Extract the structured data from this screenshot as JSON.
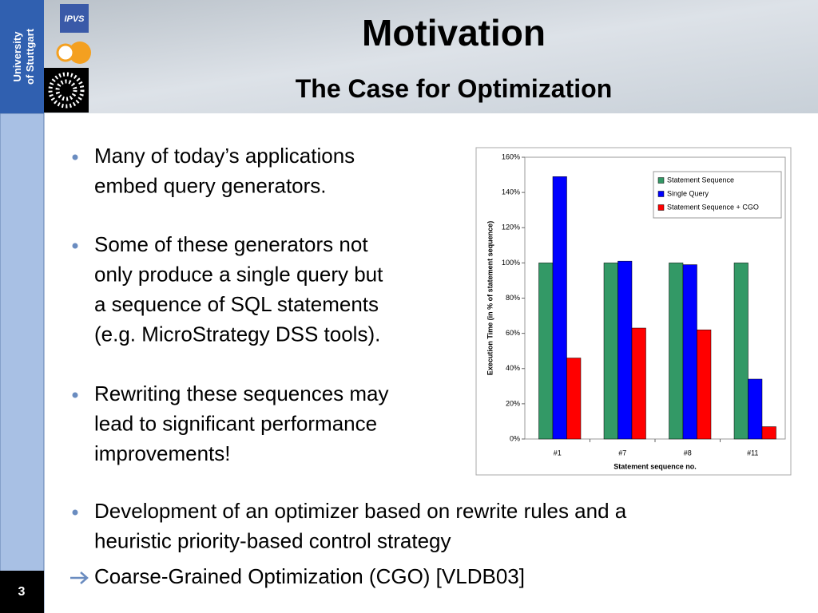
{
  "header": {
    "title": "Motivation",
    "subtitle": "The Case for Optimization"
  },
  "sidebar": {
    "university": [
      "University",
      "of Stuttgart"
    ],
    "logo": "IPVS",
    "page_number": "3"
  },
  "bullets": [
    [
      "Many of today’s applications",
      "embed query generators."
    ],
    [
      "Some of these generators not",
      "only produce a single query but",
      "a sequence of SQL statements",
      "(e.g. MicroStrategy DSS tools)."
    ],
    [
      "Rewriting these sequences may",
      "lead to significant performance",
      "improvements!"
    ],
    [
      "Development of an optimizer based on rewrite rules and a",
      "heuristic priority-based control strategy"
    ]
  ],
  "conclusion": "Coarse-Grained Optimization (CGO) [VLDB03]",
  "chart_data": {
    "type": "bar",
    "categories": [
      "#1",
      "#7",
      "#8",
      "#11"
    ],
    "series": [
      {
        "name": "Statement Sequence",
        "color": "#339966",
        "values": [
          100,
          100,
          100,
          100
        ]
      },
      {
        "name": "Single Query",
        "color": "#0000ff",
        "values": [
          149,
          101,
          99,
          34
        ]
      },
      {
        "name": "Statement Sequence + CGO",
        "color": "#ff0000",
        "values": [
          46,
          63,
          62,
          7
        ]
      }
    ],
    "ylim": [
      0,
      160
    ],
    "yticks": [
      {
        "value": 0,
        "label": "0%"
      },
      {
        "value": 20,
        "label": "20%"
      },
      {
        "value": 40,
        "label": "40%"
      },
      {
        "value": 60,
        "label": "60%"
      },
      {
        "value": 80,
        "label": "80%"
      },
      {
        "value": 100,
        "label": "100%"
      },
      {
        "value": 120,
        "label": "120%"
      },
      {
        "value": 140,
        "label": "140%"
      },
      {
        "value": 160,
        "label": "160%"
      }
    ],
    "xlabel": "Statement sequence no.",
    "ylabel": "Execution Time (in % of statement sequence)",
    "legend": "top-right",
    "grid": false
  }
}
